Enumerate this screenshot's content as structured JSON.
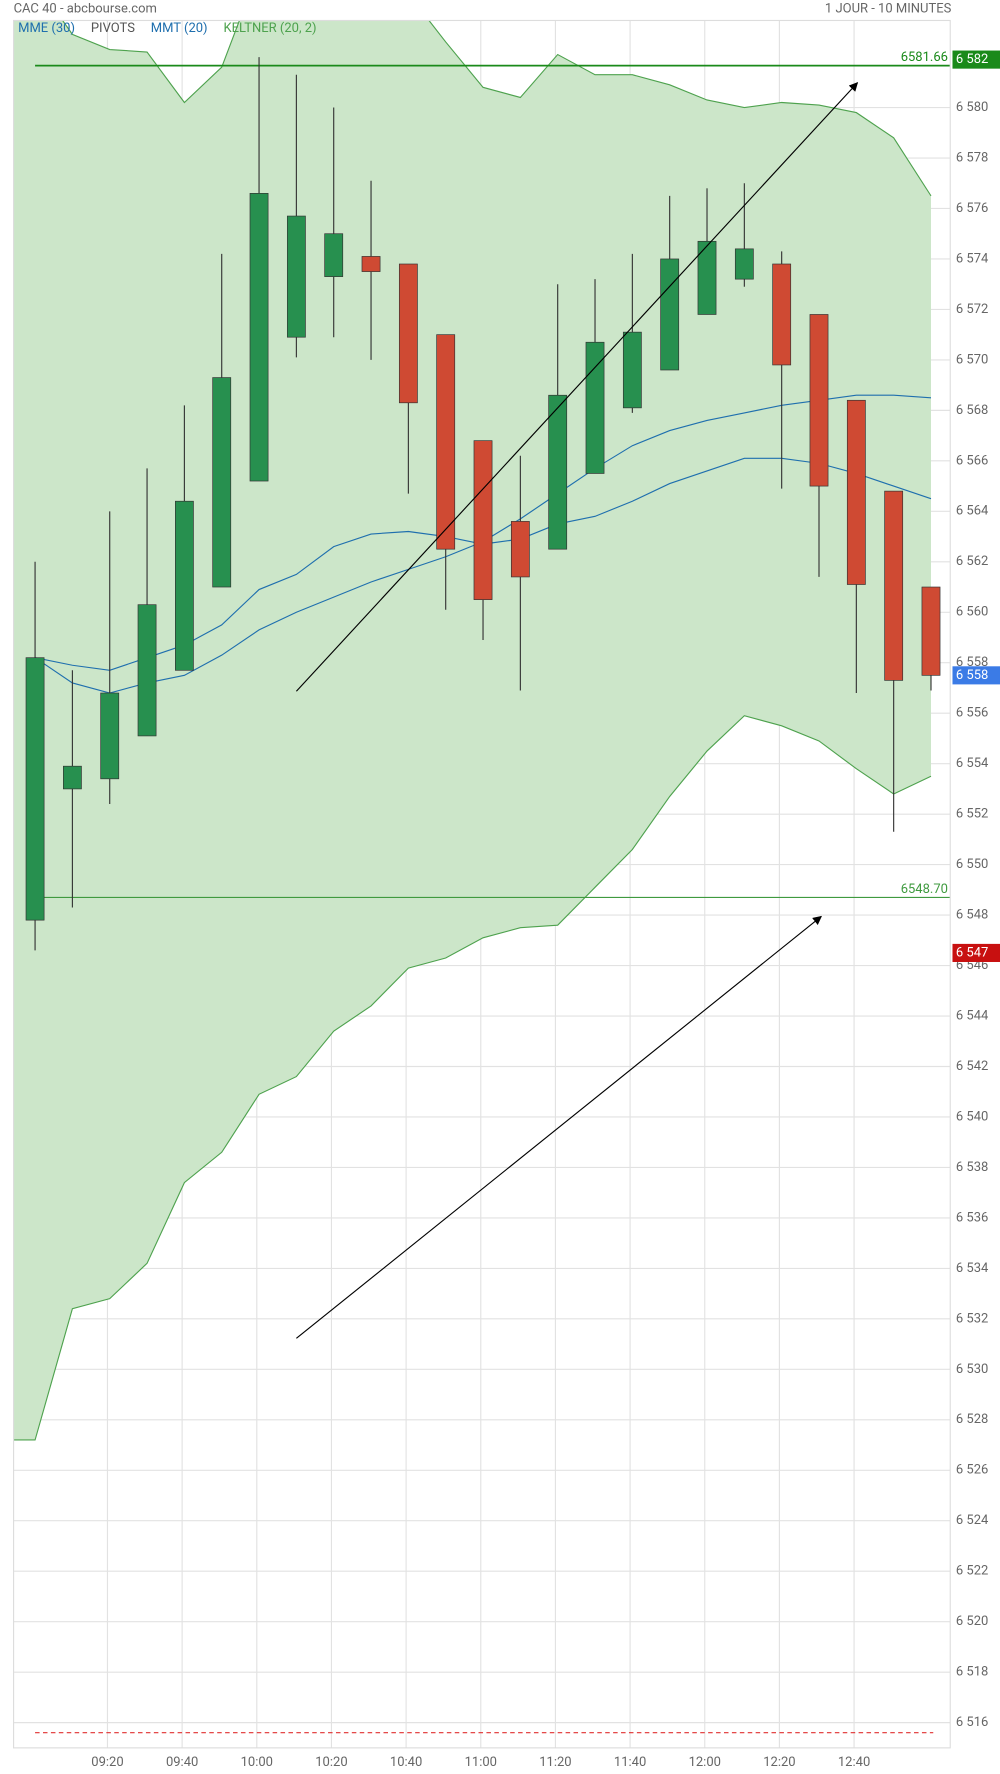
{
  "chart_data": {
    "type": "candlestick",
    "title": "CAC 40 - abcbourse.com",
    "subtitle": "1 JOUR - 10 MINUTES",
    "categories": [
      null,
      null,
      "09:20",
      null,
      "09:40",
      null,
      "10:00",
      null,
      "10:20",
      null,
      "10:40",
      null,
      "11:00",
      null,
      "11:20",
      null,
      "11:40",
      null,
      "12:00",
      null,
      "12:20",
      null,
      "12:40",
      null,
      null
    ],
    "open": [
      6547.8,
      6553.0,
      6553.4,
      6555.1,
      6557.7,
      6561.0,
      6565.2,
      6570.9,
      6573.3,
      6574.1,
      6573.8,
      6571.0,
      6566.8,
      6563.6,
      6562.5,
      6565.5,
      6568.1,
      6569.6,
      6571.8,
      6573.2,
      6573.8,
      6571.8,
      6568.4,
      6564.8,
      6561.0
    ],
    "high": [
      6562.0,
      6557.7,
      6564.0,
      6565.7,
      6568.2,
      6574.2,
      6582.0,
      6581.3,
      6580.0,
      6577.1,
      6573.8,
      6571.0,
      6566.8,
      6566.2,
      6573.0,
      6573.2,
      6574.2,
      6576.5,
      6576.8,
      6577.0,
      6574.3,
      6571.8,
      6568.4,
      6564.8,
      6561.0
    ],
    "low": [
      6546.6,
      6548.3,
      6552.4,
      6555.1,
      6557.7,
      6561.0,
      6565.2,
      6570.1,
      6570.9,
      6570.0,
      6564.7,
      6560.1,
      6558.9,
      6556.9,
      6562.5,
      6565.5,
      6567.9,
      6569.6,
      6571.8,
      6572.9,
      6564.9,
      6561.4,
      6556.8,
      6551.3,
      6556.9
    ],
    "close": [
      6558.2,
      6553.9,
      6556.8,
      6560.3,
      6564.4,
      6569.3,
      6576.6,
      6575.7,
      6575.0,
      6573.5,
      6568.3,
      6562.5,
      6560.5,
      6561.4,
      6568.6,
      6570.7,
      6571.1,
      6574.0,
      6574.7,
      6574.4,
      6569.8,
      6565.0,
      6561.1,
      6557.3,
      6557.5
    ],
    "up_color": "#27904f",
    "down_color": "#cf4a33",
    "series": [
      {
        "name": "MME (30)",
        "color": "#1f6fae",
        "values": [
          6558.2,
          6557.2,
          6556.8,
          6557.2,
          6557.5,
          6558.3,
          6559.3,
          6560.0,
          6560.6,
          6561.2,
          6561.7,
          6562.2,
          6562.8,
          6563.7,
          6564.7,
          6565.7,
          6566.6,
          6567.2,
          6567.6,
          6567.9,
          6568.2,
          6568.4,
          6568.6,
          6568.6,
          6568.5
        ]
      },
      {
        "name": "MMT (20)",
        "color": "#1f6fae",
        "values": [
          6558.2,
          6557.9,
          6557.7,
          6558.2,
          6558.7,
          6559.5,
          6560.9,
          6561.5,
          6562.6,
          6563.1,
          6563.2,
          6563.0,
          6562.7,
          6562.9,
          6563.5,
          6563.8,
          6564.4,
          6565.1,
          6565.6,
          6566.1,
          6566.1,
          6565.9,
          6565.5,
          6565.0,
          6564.5
        ]
      }
    ],
    "pivots": {
      "name": "PIVOTS",
      "value": 6515.6,
      "color": "#e03030"
    },
    "band": {
      "name": "KELTNER (20, 2)",
      "color": "#4ea24e",
      "fill": "#cce6c9",
      "upper": [
        6585.0,
        6582.9,
        6582.3,
        6582.2,
        6580.2,
        6581.6,
        6585.5,
        6586.0,
        6586.0,
        6585.5,
        6584.5,
        6582.6,
        6580.8,
        6580.4,
        6582.1,
        6581.3,
        6581.3,
        6580.9,
        6580.3,
        6580.0,
        6580.2,
        6580.1,
        6579.8,
        6578.8,
        6576.5
      ],
      "lower": [
        6527.2,
        6532.4,
        6532.8,
        6534.2,
        6537.4,
        6538.6,
        6540.9,
        6541.6,
        6543.4,
        6544.4,
        6545.9,
        6546.3,
        6547.1,
        6547.5,
        6547.6,
        6549.1,
        6550.6,
        6552.7,
        6554.5,
        6555.9,
        6555.5,
        6554.9,
        6553.8,
        6552.8,
        6553.5
      ]
    },
    "levels": [
      {
        "value": 6581.66,
        "label": "6581.66",
        "color": "#1a8a1a"
      },
      {
        "value": 6548.7,
        "label": "6548.70",
        "color": "#3f9a3f"
      }
    ],
    "badges": [
      {
        "value": 6581.9,
        "label": "6 582",
        "color": "#1a8a1a"
      },
      {
        "value": 6557.5,
        "label": "6 558",
        "color": "#3b7be6"
      },
      {
        "value": 6546.5,
        "label": "6 547",
        "color": "#c81010"
      }
    ],
    "ylim": [
      6515.0,
      6583.45
    ],
    "yticks": [
      {
        "value": 6516,
        "label": "6 516"
      },
      {
        "value": 6518,
        "label": "6 518"
      },
      {
        "value": 6520,
        "label": "6 520"
      },
      {
        "value": 6522,
        "label": "6 522"
      },
      {
        "value": 6524,
        "label": "6 524"
      },
      {
        "value": 6526,
        "label": "6 526"
      },
      {
        "value": 6528,
        "label": "6 528"
      },
      {
        "value": 6530,
        "label": "6 530"
      },
      {
        "value": 6532,
        "label": "6 532"
      },
      {
        "value": 6534,
        "label": "6 534"
      },
      {
        "value": 6536,
        "label": "6 536"
      },
      {
        "value": 6538,
        "label": "6 538"
      },
      {
        "value": 6540,
        "label": "6 540"
      },
      {
        "value": 6542,
        "label": "6 542"
      },
      {
        "value": 6544,
        "label": "6 544"
      },
      {
        "value": 6546,
        "label": "6 546"
      },
      {
        "value": 6548,
        "label": "6 548"
      },
      {
        "value": 6550,
        "label": "6 550"
      },
      {
        "value": 6552,
        "label": "6 552"
      },
      {
        "value": 6554,
        "label": "6 554"
      },
      {
        "value": 6556,
        "label": "6 556"
      },
      {
        "value": 6558,
        "label": "6 558"
      },
      {
        "value": 6560,
        "label": "6 560"
      },
      {
        "value": 6562,
        "label": "6 562"
      },
      {
        "value": 6564,
        "label": "6 564"
      },
      {
        "value": 6566,
        "label": "6 566"
      },
      {
        "value": 6568,
        "label": "6 568"
      },
      {
        "value": 6570,
        "label": "6 570"
      },
      {
        "value": 6572,
        "label": "6 572"
      },
      {
        "value": 6574,
        "label": "6 574"
      },
      {
        "value": 6576,
        "label": "6 576"
      },
      {
        "value": 6578,
        "label": "6 578"
      },
      {
        "value": 6580,
        "label": "6 580"
      }
    ],
    "grid": true
  }
}
